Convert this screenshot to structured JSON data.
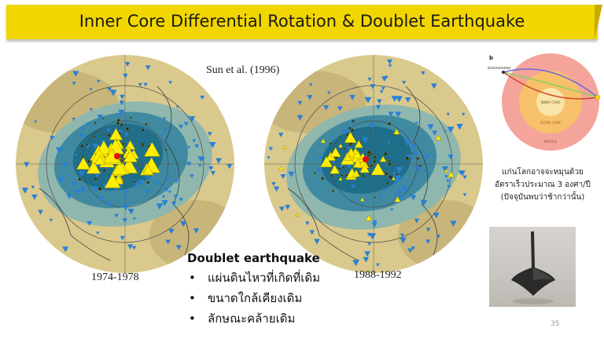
{
  "slide": {
    "title": "Inner Core Differential Rotation & Doublet Earthquake",
    "citation": "Sun et al. (1996)",
    "page_number": "35"
  },
  "maps": [
    {
      "label": "1974-1978"
    },
    {
      "label": "1988-1992"
    }
  ],
  "doublet": {
    "heading": "Doublet earthquake",
    "bullets": [
      "แผ่นดินไหวที่เกิดที่เดิม",
      "ขนาดใกล้เคียงเดิม",
      "ลักษณะคล้ายเดิม"
    ]
  },
  "core_figure": {
    "panel_label": "b",
    "seismometer_label": "Seismometer",
    "inner_core_label": "INNER CORE",
    "outer_core_label": "OUTER CORE",
    "mantle_label": "MANTLE"
  },
  "note_lines": [
    "แก่นโลกอาจจะหมุนด้วย",
    "อัตราเร็วประมาณ 3 องศา/ปี",
    "(ปัจจุบันพบว่าช้ากว่านั้น)"
  ],
  "colors": {
    "title_bar": "#f2d600",
    "map_land": "#d9c98c",
    "map_deep": "#1f6e8a",
    "station_up": "#ffee00",
    "station_down": "#2a7fd4",
    "event": "#e01010"
  }
}
